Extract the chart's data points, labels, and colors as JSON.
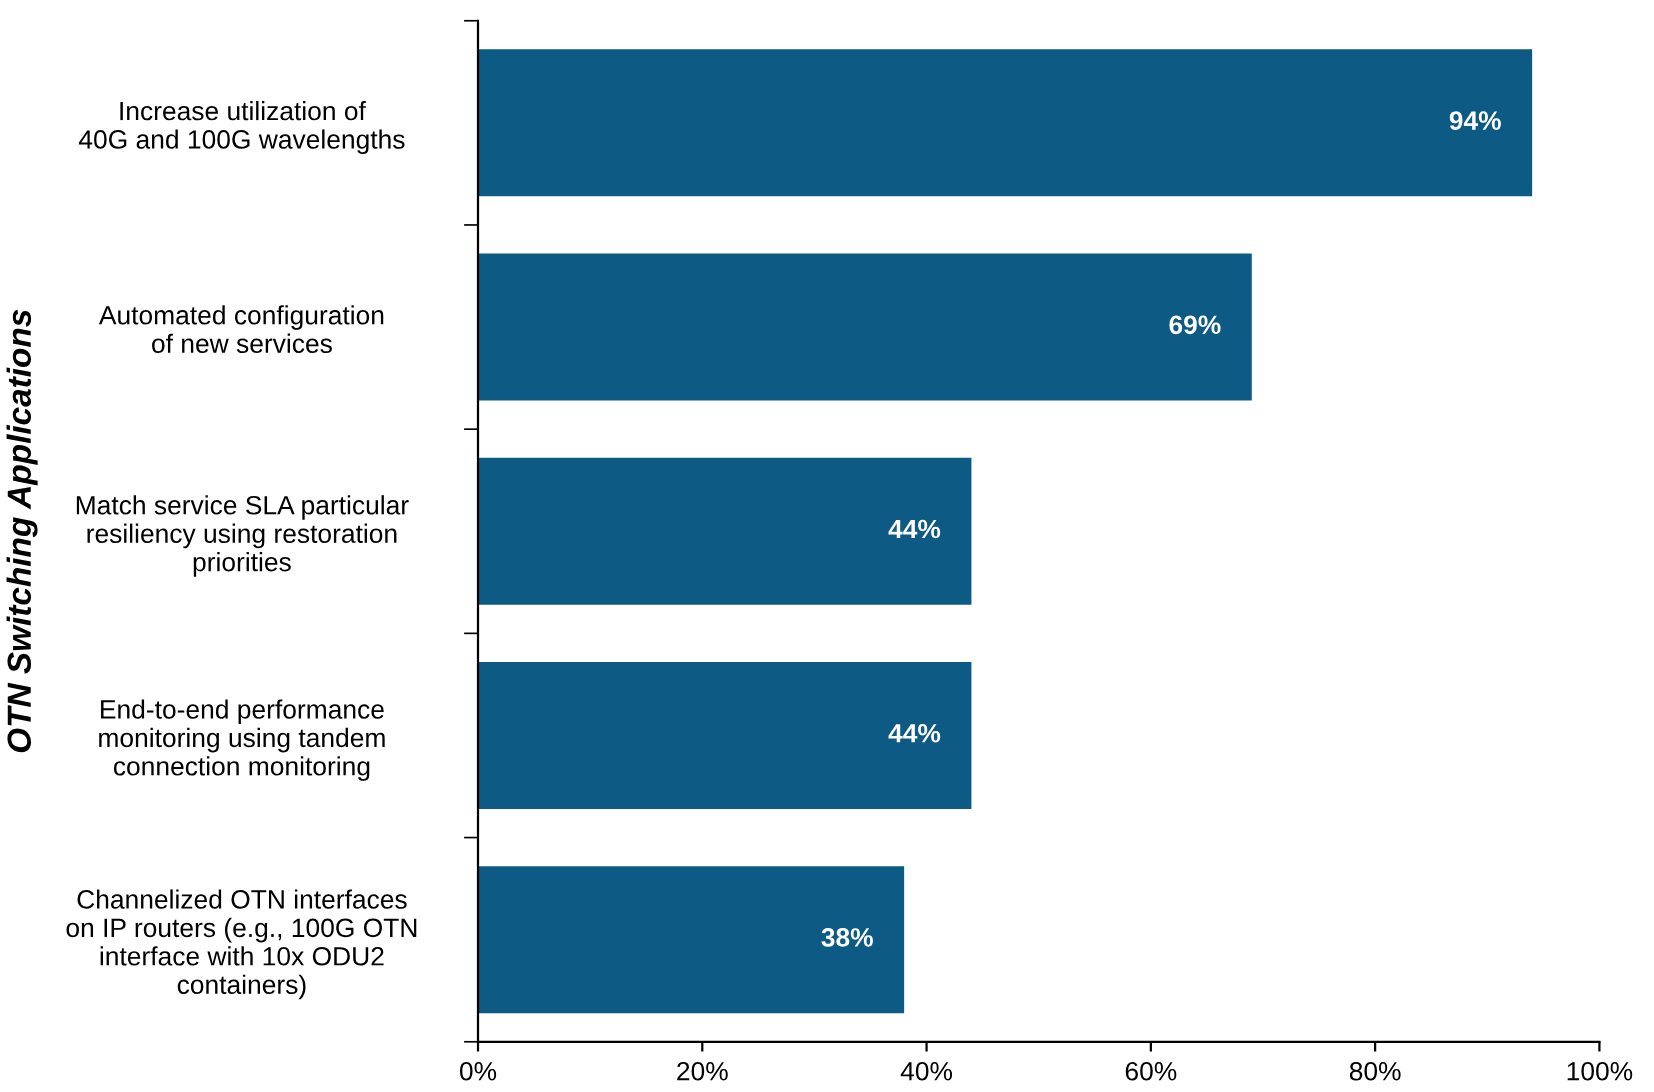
{
  "chart_data": {
    "type": "bar",
    "orientation": "horizontal",
    "ylabel": "OTN Switching Applications",
    "categories": [
      "Increase utilization of\n40G and 100G wavelengths",
      "Automated configuration\nof new services",
      "Match service SLA particular\nresiliency using restoration\npriorities",
      "End-to-end performance\nmonitoring using tandem\nconnection monitoring",
      "Channelized OTN interfaces\non IP routers (e.g., 100G OTN\ninterface with 10x ODU2\ncontainers)"
    ],
    "values": [
      94,
      69,
      44,
      44,
      38
    ],
    "value_labels": [
      "94%",
      "69%",
      "44%",
      "44%",
      "38%"
    ],
    "color": "#0d5a84",
    "xlim": [
      0,
      100
    ],
    "xticks": [
      {
        "value": 0,
        "label": "0%"
      },
      {
        "value": 20,
        "label": "20%"
      },
      {
        "value": 40,
        "label": "40%"
      },
      {
        "value": 60,
        "label": "60%"
      },
      {
        "value": 80,
        "label": "80%"
      },
      {
        "value": 100,
        "label": "100%"
      }
    ],
    "grid": false,
    "legend": false
  }
}
